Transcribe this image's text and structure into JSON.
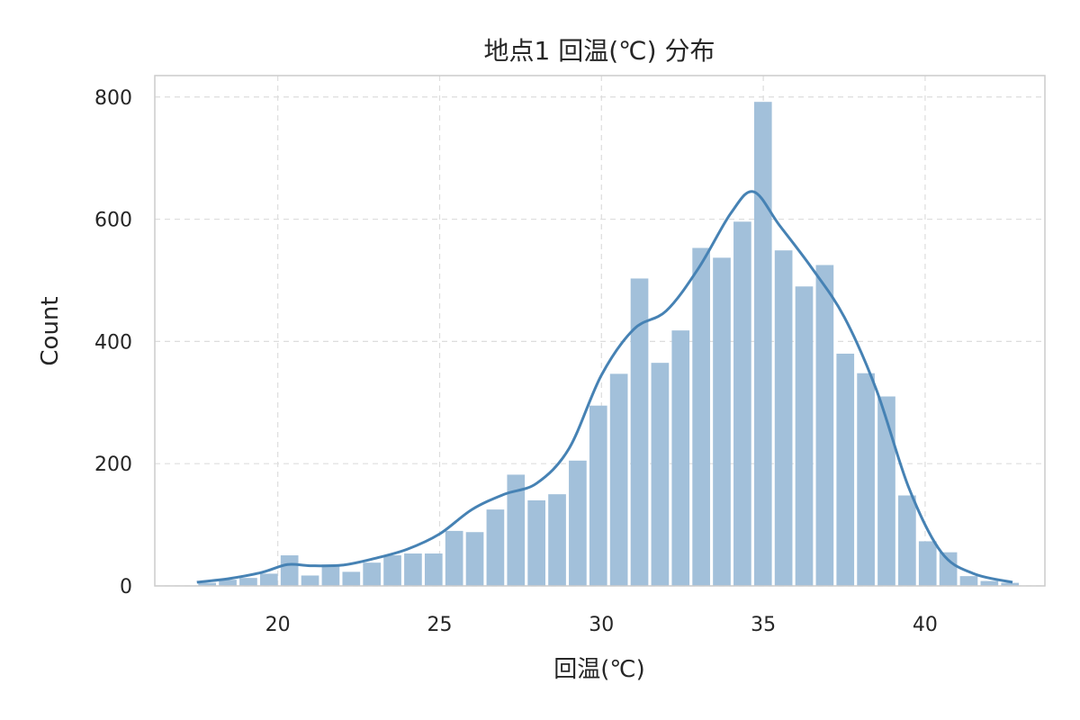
{
  "chart_data": {
    "type": "bar",
    "title": "地点1 回温(℃) 分布",
    "xlabel": "回温(℃)",
    "ylabel": "Count",
    "xlim": [
      16.2,
      43.7
    ],
    "ylim": [
      0,
      835
    ],
    "xticks": [
      20,
      25,
      30,
      35,
      40
    ],
    "yticks": [
      0,
      200,
      400,
      600,
      800
    ],
    "grid": true,
    "bin_width": 0.636,
    "bin_start": 17.5,
    "counts": [
      5,
      10,
      13,
      20,
      50,
      17,
      35,
      23,
      38,
      50,
      53,
      53,
      90,
      88,
      125,
      182,
      140,
      150,
      205,
      295,
      347,
      503,
      365,
      418,
      553,
      537,
      596,
      792,
      549,
      490,
      525,
      380,
      348,
      310,
      148,
      73,
      55,
      16,
      8,
      5
    ],
    "kde": {
      "x": [
        17.5,
        18.5,
        19.5,
        20.3,
        21.0,
        22.0,
        23.0,
        24.0,
        25.0,
        26.0,
        27.0,
        28.0,
        29.0,
        30.0,
        31.0,
        32.0,
        33.0,
        34.0,
        34.7,
        35.5,
        36.5,
        37.5,
        38.5,
        39.5,
        40.5,
        41.5,
        42.7
      ],
      "y": [
        6,
        12,
        22,
        35,
        33,
        34,
        45,
        60,
        85,
        125,
        150,
        168,
        225,
        345,
        420,
        450,
        520,
        610,
        645,
        590,
        520,
        440,
        320,
        160,
        55,
        20,
        6
      ]
    },
    "colors": {
      "bar": "#a2c0da",
      "line": "#4682b4"
    }
  }
}
